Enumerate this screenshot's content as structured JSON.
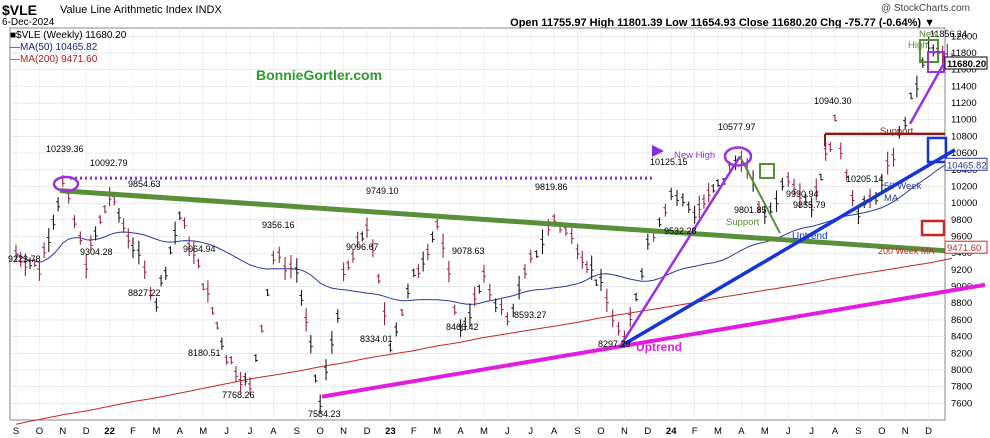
{
  "header": {
    "symbol": "$VLE",
    "name": "Value Line Arithmetic Index  INDX",
    "date": "6-Dec-2024",
    "credit": "@ StockCharts.com",
    "quote": "Open 11755.97  High 11801.39  Low 11654.93  Close 11680.20  Chg -75.77 (-0.64%) ▼"
  },
  "legend": {
    "price": "■$VLE (Weekly) 11680.20",
    "ma50": "—MA(50) 10465.82",
    "ma200": "—MA(200) 9471.60"
  },
  "brand": "BonnieGortler.com",
  "colors": {
    "up_bar": "#1a1a1a",
    "down_bar": "#9c1f4a",
    "ma50": "#2b3a9e",
    "ma200": "#c62828",
    "long_trend": "#5a8f3a",
    "uptrend_magenta": "#e31ce0",
    "uptrend_blue": "#1535d4",
    "uptrend_purple": "#9b30e0",
    "support": "#8b1a1a",
    "dotted": "#8a2be2"
  },
  "chart_data": {
    "type": "line",
    "title": "$VLE (Weekly)",
    "ylim": [
      7400,
      12100
    ],
    "y_ticks": [
      7600,
      7800,
      8000,
      8200,
      8400,
      8600,
      8800,
      9000,
      9200,
      9400,
      9600,
      9800,
      10000,
      10200,
      10400,
      10600,
      10800,
      11000,
      11200,
      11400,
      11600,
      11800,
      12000
    ],
    "x_ticks": [
      "S",
      "O",
      "N",
      "D",
      "22",
      "F",
      "M",
      "A",
      "M",
      "J",
      "J",
      "A",
      "S",
      "O",
      "N",
      "D",
      "23",
      "F",
      "M",
      "A",
      "M",
      "J",
      "J",
      "A",
      "S",
      "O",
      "N",
      "D",
      "24",
      "F",
      "M",
      "A",
      "M",
      "J",
      "J",
      "A",
      "S",
      "O",
      "N",
      "D"
    ],
    "x_ticks_bold": [
      "22",
      "23",
      "24"
    ],
    "anchor_points": [
      {
        "x": "S",
        "y": 9400
      },
      {
        "x": "O",
        "y": 9223.78
      },
      {
        "x": "N",
        "y": 10239.36
      },
      {
        "x": "N",
        "y": 9304.28
      },
      {
        "x": "D",
        "y": 10092.79
      },
      {
        "x": "22",
        "y": 9500
      },
      {
        "x": "F",
        "y": 8827.22
      },
      {
        "x": "M",
        "y": 9854.63
      },
      {
        "x": "A",
        "y": 9064.94
      },
      {
        "x": "M",
        "y": 8180.51
      },
      {
        "x": "J",
        "y": 7768.26
      },
      {
        "x": "J",
        "y": 9356.16
      },
      {
        "x": "A",
        "y": 9200
      },
      {
        "x": "S",
        "y": 7584.23
      },
      {
        "x": "O",
        "y": 9096.67
      },
      {
        "x": "N",
        "y": 9749.1
      },
      {
        "x": "D",
        "y": 8334.01
      },
      {
        "x": "23",
        "y": 9100
      },
      {
        "x": "F",
        "y": 9749.1
      },
      {
        "x": "M",
        "y": 8466.42
      },
      {
        "x": "A",
        "y": 9078.63
      },
      {
        "x": "M",
        "y": 8593.27
      },
      {
        "x": "J",
        "y": 9300
      },
      {
        "x": "J",
        "y": 9819.86
      },
      {
        "x": "A",
        "y": 9500
      },
      {
        "x": "S",
        "y": 9000
      },
      {
        "x": "O",
        "y": 8297.29
      },
      {
        "x": "N",
        "y": 9532.28
      },
      {
        "x": "D",
        "y": 10125.15
      },
      {
        "x": "24",
        "y": 9900
      },
      {
        "x": "F",
        "y": 10200
      },
      {
        "x": "M",
        "y": 10577.97
      },
      {
        "x": "A",
        "y": 9801.85
      },
      {
        "x": "M",
        "y": 10350
      },
      {
        "x": "J",
        "y": 9990.94
      },
      {
        "x": "J",
        "y": 10940.3
      },
      {
        "x": "A",
        "y": 9855.79
      },
      {
        "x": "S",
        "y": 10205.14
      },
      {
        "x": "O",
        "y": 11000
      },
      {
        "x": "N",
        "y": 11856.24
      },
      {
        "x": "D",
        "y": 11680.2
      }
    ],
    "series": [
      {
        "name": "MA(50)",
        "last": 10465.82
      },
      {
        "name": "MA(200)",
        "last": 9471.6
      }
    ],
    "price_labels": [
      "10239.36",
      "10092.79",
      "9223.78",
      "9304.28",
      "9854.63",
      "8827.22",
      "9064.94",
      "8180.51",
      "7768.26",
      "9356.16",
      "7584.23",
      "9096.67",
      "8334.01",
      "9749.10",
      "9078.63",
      "8466.42",
      "8593.27",
      "9819.86",
      "8297.29",
      "9532.28",
      "10125.15",
      "10577.97",
      "9801.85",
      "9990.94",
      "10940.30",
      "9855.79",
      "10205.14",
      "11856.24"
    ],
    "annotations": {
      "new_high_left": "New High",
      "new_high_right_1": "New",
      "new_high_right_2": "High",
      "support_left": "Support",
      "support_right": "Support",
      "uptrend_blue": "Uptrend",
      "uptrend_magenta": "Uptrend",
      "ma50": "50 Week\nMA",
      "ma200": "200 Week MA"
    },
    "right_tags": {
      "price": "11680.20",
      "ma50": "10465.82",
      "ma200": "9471.60"
    },
    "grid": true
  }
}
